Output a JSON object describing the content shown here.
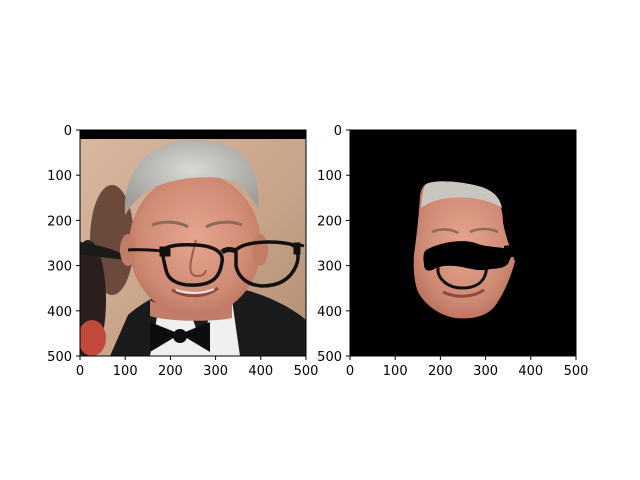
{
  "figure": {
    "background": "#ffffff"
  },
  "chart_data": [
    {
      "type": "image",
      "title": "",
      "xlabel": "",
      "ylabel": "",
      "content": "RGB photograph of a man's face with black drawn eyeglasses overlay",
      "xlim": [
        0,
        500
      ],
      "ylim": [
        500,
        0
      ],
      "xticks": [
        "0",
        "100",
        "200",
        "300",
        "400",
        "500"
      ],
      "yticks": [
        "0",
        "100",
        "200",
        "300",
        "400",
        "500"
      ],
      "grid": false
    },
    {
      "type": "image",
      "title": "",
      "xlabel": "",
      "ylabel": "",
      "content": "Segmented face region on black background with occluded glasses area in black",
      "xlim": [
        0,
        500
      ],
      "ylim": [
        500,
        0
      ],
      "xticks": [
        "0",
        "100",
        "200",
        "300",
        "400",
        "500"
      ],
      "yticks": [
        "0",
        "100",
        "200",
        "300",
        "400",
        "500"
      ],
      "grid": false
    }
  ]
}
